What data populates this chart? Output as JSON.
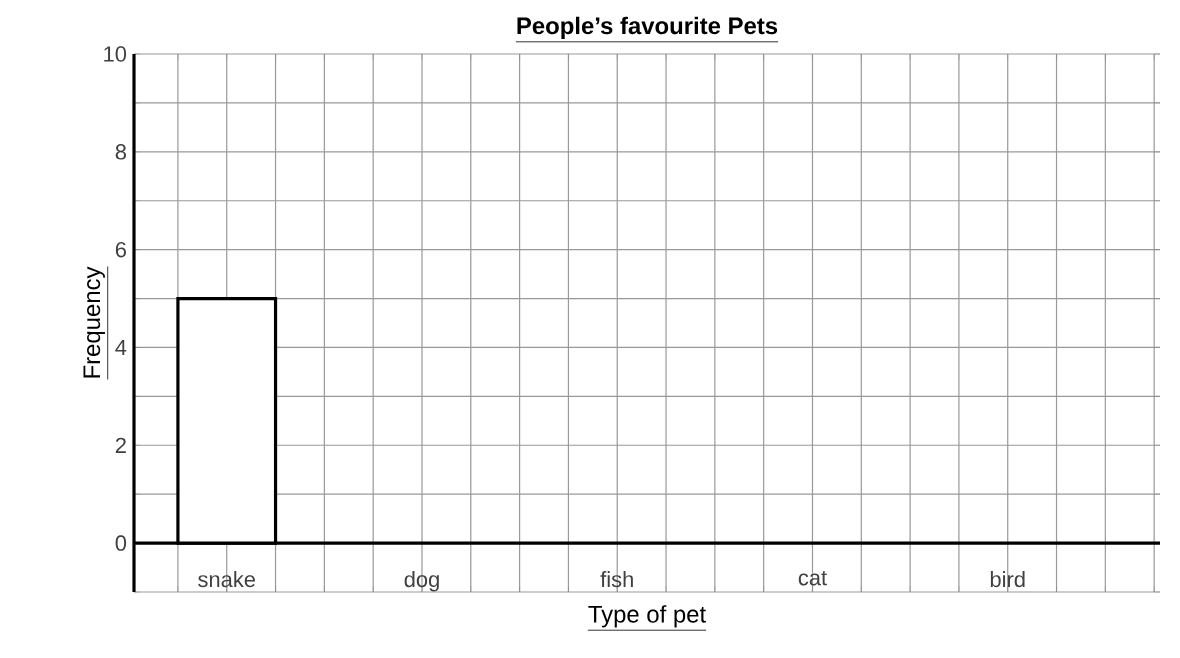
{
  "chart_data": {
    "type": "bar",
    "title": "People’s favourite Pets",
    "xlabel": "Type of pet",
    "ylabel": "Frequency",
    "categories": [
      "snake",
      "dog",
      "fish",
      "cat",
      "bird"
    ],
    "values": [
      5,
      null,
      null,
      null,
      null
    ],
    "color": "#000000",
    "ylim": [
      -1,
      10
    ],
    "yticks": [
      0,
      2,
      4,
      6,
      8,
      10
    ],
    "grid": true
  }
}
